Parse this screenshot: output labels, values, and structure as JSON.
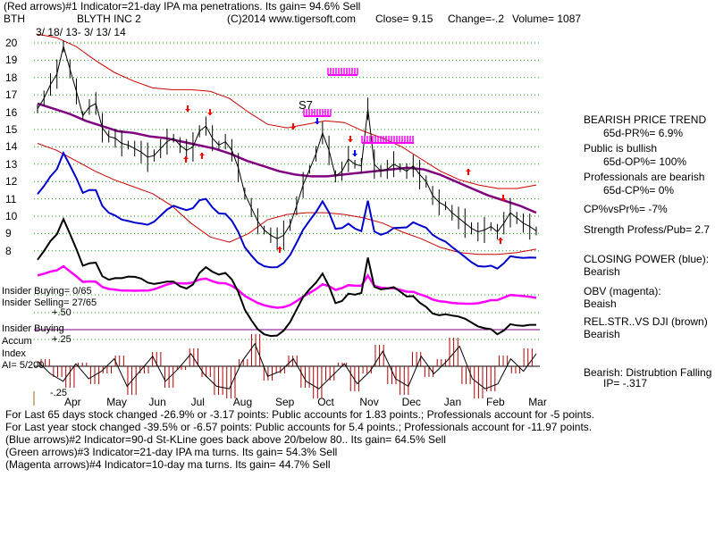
{
  "header": {
    "line1": "(Red arrows)#1 Indicator=21-day IPA ma penetrations. Its gain= 94.6% Sell",
    "ticker": "BTH",
    "company": "BLYTH INC 2",
    "copyright": "(C)2014 www.tigersoft.com",
    "close": "Close=  9.15",
    "change": "Change=-.2",
    "volume": "Volume= 1087",
    "date_range": "3/ 18/ 13-  3/ 13/ 14"
  },
  "colors": {
    "price": "#000000",
    "bands": "#cc0000",
    "ma65": "#800080",
    "closing_power": "#0000cc",
    "obv": "#ff00ff",
    "relstr": "#000000",
    "accum_bars": "#b00000",
    "grid": "#00aa00",
    "arrow_red": "#ff0000",
    "arrow_blue": "#0000ff",
    "arrow_magenta": "#ff00ff",
    "insider_line": "#800080"
  },
  "annotations": {
    "s7": "S7"
  },
  "left_labels": {
    "insider_buying": "Insider Buying= 0/65",
    "insider_selling": "Insider Selling= 27/65",
    "p50": "+.50",
    "insider_buying2": "Insider Buying",
    "accum": "Accum",
    "p25": "+.25",
    "index": "Index",
    "ai": "AI= 5/200",
    "m25": "-.25"
  },
  "right_panel": {
    "trend_title": "BEARISH PRICE TREND",
    "pr": "65d-PR%= 6.9%",
    "public": "Public is bullish",
    "op": "65d-OP%= 100%",
    "professionals": "Professionals are bearish",
    "cp": "65d-CP%= 0%",
    "cpvspr": "CP%vsPr%= -7%",
    "strength": "Strength Profess/Pub= 2.7",
    "closing_power": "CLOSING POWER (blue):",
    "closing_power_val": "Bearish",
    "obv": "OBV (magenta):",
    "obv_val": "Beaish",
    "relstr": "REL.STR..VS DJI (brown)",
    "relstr_val": "Bearish",
    "distribution": "Bearish: Distrubtion Falling",
    "ip": "IP= -.317"
  },
  "footer": {
    "line1": "For Last 65 days stock changed -26.9% or -3.17 points:  Public accounts for  1.83 points.;  Professionals account for -5 points.",
    "line2": "For Last year stock changed -39.5% or -6.57 points:  Public accounts for  5.4 points.;  Professionals account for -11.97 points.",
    "line3": "(Blue arrows)#2 Indicator=90-d St-KLine goes back above 20/below 80.. Its gain= 64.5% Sell",
    "line4": "(Green arrows)#3 Indicator=21-day IPA ma turns. Its gain= 54.3% Sell",
    "line5": "(Magenta arrows)#4 Indicator=10-day ma turns. Its gain= 44.7% Sell"
  },
  "chart_data": {
    "type": "line",
    "ylim": [
      7,
      20
    ],
    "yticks": [
      20,
      19,
      18,
      17,
      16,
      15,
      14,
      13,
      12,
      11,
      10,
      9,
      8
    ],
    "months": [
      "Apr",
      "May",
      "Jun",
      "Jul",
      "Aug",
      "Sep",
      "Oct",
      "Nov",
      "Dec",
      "Jan",
      "Feb",
      "Mar"
    ],
    "price_series_note": "daily bars approximated from the chart",
    "price": [
      16.2,
      16.8,
      17.6,
      18.2,
      19.8,
      18.5,
      17.2,
      15.8,
      16.3,
      16.5,
      15.1,
      14.6,
      14.5,
      14.2,
      14.1,
      13.9,
      13.7,
      13.4,
      13.5,
      13.9,
      14.3,
      14.5,
      14.1,
      13.8,
      14.0,
      14.9,
      15.2,
      14.5,
      14.1,
      14.3,
      13.8,
      12.8,
      11.3,
      10.5,
      9.7,
      9.2,
      8.9,
      8.7,
      8.9,
      9.5,
      10.6,
      11.8,
      12.7,
      13.6,
      14.8,
      13.8,
      12.3,
      12.6,
      13.3,
      13.0,
      12.9,
      16.2,
      13.0,
      12.6,
      12.7,
      13.0,
      12.8,
      12.6,
      12.9,
      12.4,
      12.0,
      11.2,
      10.8,
      10.6,
      10.2,
      9.9,
      9.6,
      9.3,
      9.1,
      9.2,
      9.4,
      9.1,
      9.6,
      10.2,
      9.9,
      9.6,
      9.4,
      9.15
    ],
    "ma65": [
      16.5,
      16.2,
      15.9,
      15.5,
      15.2,
      14.9,
      14.8,
      14.6,
      14.5,
      14.3,
      14.1,
      13.9,
      13.6,
      13.2,
      12.9,
      12.6,
      12.4,
      12.3,
      12.3,
      12.4,
      12.5,
      12.6,
      12.7,
      12.8,
      12.7,
      12.4,
      12.0,
      11.6,
      11.2,
      10.9,
      10.6,
      10.2
    ],
    "upper_band": [
      20.5,
      20.3,
      19.8,
      19.0,
      18.3,
      17.8,
      17.4,
      17.3,
      17.3,
      17.2,
      16.8,
      16.0,
      15.3,
      15.1,
      15.3,
      15.5,
      15.4,
      14.9,
      14.5,
      14.0,
      13.3,
      12.6,
      12.1,
      11.8,
      11.6,
      11.6,
      11.8
    ],
    "lower_band": [
      14.2,
      13.8,
      13.2,
      12.6,
      12.1,
      11.7,
      11.3,
      10.6,
      9.6,
      8.8,
      8.5,
      9.0,
      9.8,
      10.1,
      10.2,
      10.2,
      10.1,
      9.9,
      9.6,
      9.1,
      8.7,
      8.2,
      7.9,
      7.8,
      7.8,
      7.9,
      8.1
    ],
    "accum_index_note": "bars sampled",
    "accum_index": [
      0.2,
      -0.3,
      -0.6,
      0.1,
      -0.5,
      -0.2,
      0.3,
      -0.8,
      -0.2,
      0.4,
      -0.6,
      -0.1,
      0.5,
      -0.3,
      -0.8,
      -0.9,
      0.2,
      0.9,
      -0.4,
      -0.2,
      0.3,
      -0.6,
      -0.9,
      -0.4,
      0.1,
      -0.7,
      -0.2,
      0.6,
      -0.5,
      -0.8,
      0.4,
      -0.3,
      0.2,
      0.8,
      -0.5,
      -0.9,
      -0.7,
      0.3,
      -0.2,
      0.5
    ]
  }
}
